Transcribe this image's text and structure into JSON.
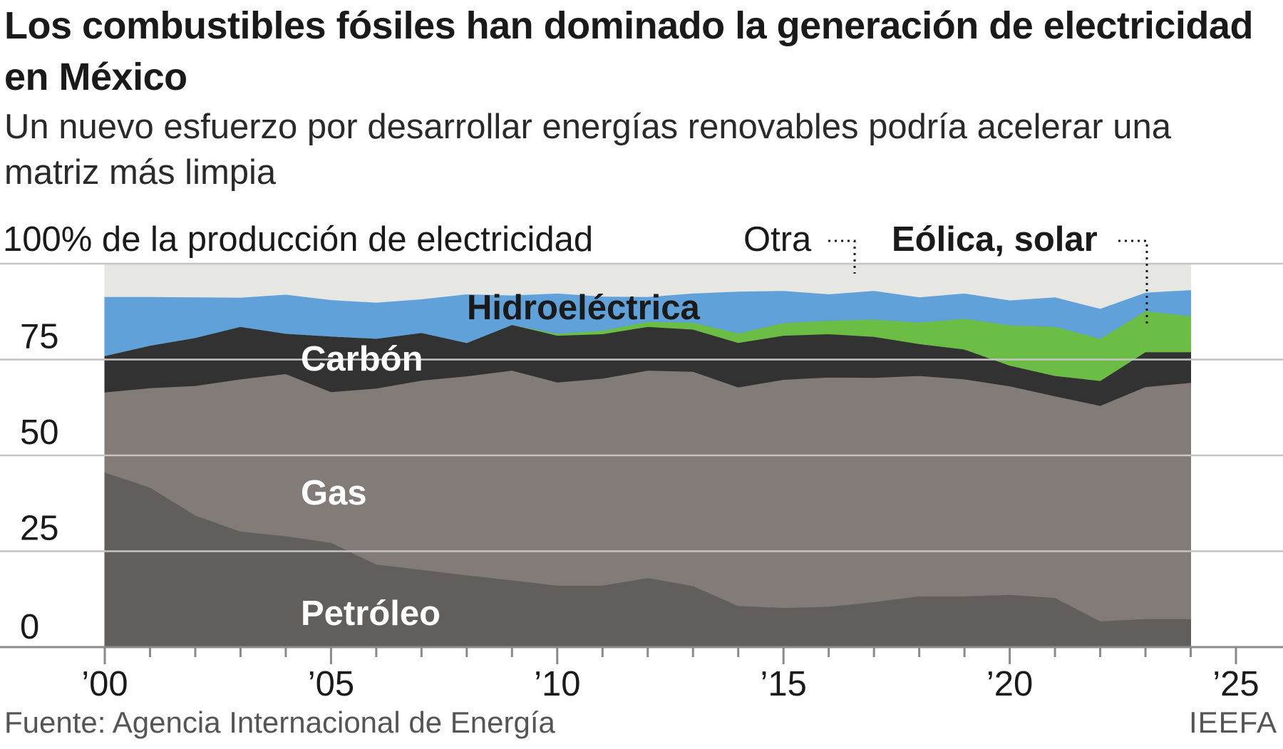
{
  "title": "Los combustibles fósiles han dominado la generación de electricidad en México",
  "subtitle": "Un nuevo esfuerzo por desarrollar energías renovables podría acelerar una matriz más limpia",
  "source": "Fuente: Agencia Internacional de Energía",
  "credit": "IEEFA",
  "colors": {
    "petroleo": "#625e5c",
    "gas": "#827b77",
    "carbon": "#333233",
    "hidro": "#5fa1d8",
    "eolica_solar": "#6cbd45",
    "otra": "#e6e6e3",
    "grid": "#c4c4c4",
    "axis": "#8a8a8a"
  },
  "chart_data": {
    "type": "area",
    "stacked": true,
    "ylabel": "100% de la producción de electricidad",
    "ylim": [
      0,
      100
    ],
    "yticks": [
      0,
      25,
      50,
      75
    ],
    "ytick_labels": [
      "0",
      "25",
      "50",
      "75"
    ],
    "xlim": [
      2000,
      2025
    ],
    "xtick_values": [
      2000,
      2005,
      2010,
      2015,
      2020,
      2025
    ],
    "xtick_labels": [
      "’00",
      "’05",
      "’10",
      "’15",
      "’20",
      "’25"
    ],
    "grid": true,
    "x": [
      2000,
      2001,
      2002,
      2003,
      2004,
      2005,
      2006,
      2007,
      2008,
      2009,
      2010,
      2011,
      2012,
      2013,
      2014,
      2015,
      2016,
      2017,
      2018,
      2019,
      2020,
      2021,
      2022,
      2023,
      2024
    ],
    "series": [
      {
        "name": "Petróleo",
        "key": "petroleo",
        "values": [
          45.6,
          41.7,
          34.4,
          30.2,
          29.0,
          27.3,
          21.6,
          20.2,
          18.8,
          17.5,
          16.1,
          16.1,
          18.1,
          16.0,
          10.8,
          10.3,
          10.6,
          11.8,
          13.3,
          13.3,
          13.7,
          12.9,
          6.8,
          7.4,
          7.4
        ]
      },
      {
        "name": "Gas",
        "key": "gas",
        "values": [
          20.9,
          25.9,
          33.8,
          39.7,
          42.3,
          39.3,
          45.9,
          49.4,
          51.9,
          54.7,
          53.0,
          54.0,
          54.1,
          55.9,
          57.0,
          59.5,
          59.8,
          58.5,
          57.5,
          56.6,
          54.4,
          52.6,
          56.2,
          60.5,
          61.6
        ]
      },
      {
        "name": "Carbón",
        "key": "carbon",
        "values": [
          9.5,
          11.1,
          12.5,
          13.7,
          10.5,
          14.5,
          13.0,
          12.4,
          8.7,
          11.9,
          12.2,
          11.6,
          11.4,
          11.0,
          11.6,
          11.5,
          11.3,
          10.7,
          8.3,
          7.8,
          5.4,
          5.3,
          6.5,
          9.1,
          8.0
        ]
      },
      {
        "name": "Eólica, solar",
        "key": "eolica_solar",
        "values": [
          0.0,
          0.0,
          0.0,
          0.0,
          0.0,
          0.0,
          0.0,
          0.0,
          0.0,
          0.0,
          0.5,
          0.9,
          1.3,
          1.8,
          2.5,
          3.3,
          3.5,
          4.5,
          5.6,
          8.0,
          10.5,
          12.8,
          11.0,
          10.7,
          9.4
        ]
      },
      {
        "name": "Hidroeléctrica",
        "key": "hidro",
        "values": [
          15.4,
          12.7,
          10.6,
          7.6,
          10.2,
          9.5,
          9.4,
          8.8,
          12.7,
          7.7,
          10.5,
          8.9,
          6.5,
          7.6,
          10.9,
          8.4,
          6.9,
          7.5,
          6.6,
          6.6,
          6.5,
          7.7,
          7.8,
          4.8,
          6.8
        ]
      },
      {
        "name": "Otra",
        "key": "otra",
        "values": [
          8.6,
          8.6,
          8.7,
          8.8,
          8.0,
          9.4,
          10.1,
          9.2,
          7.9,
          8.2,
          7.7,
          8.5,
          8.6,
          7.7,
          7.2,
          7.0,
          7.9,
          7.0,
          8.7,
          7.7,
          9.5,
          8.7,
          11.7,
          7.5,
          6.8
        ]
      }
    ],
    "labels": {
      "petroleo": "Petróleo",
      "gas": "Gas",
      "carbon": "Carbón",
      "hidro": "Hidroeléctrica",
      "otra": "Otra",
      "eolica_solar": "Eólica, solar"
    }
  }
}
